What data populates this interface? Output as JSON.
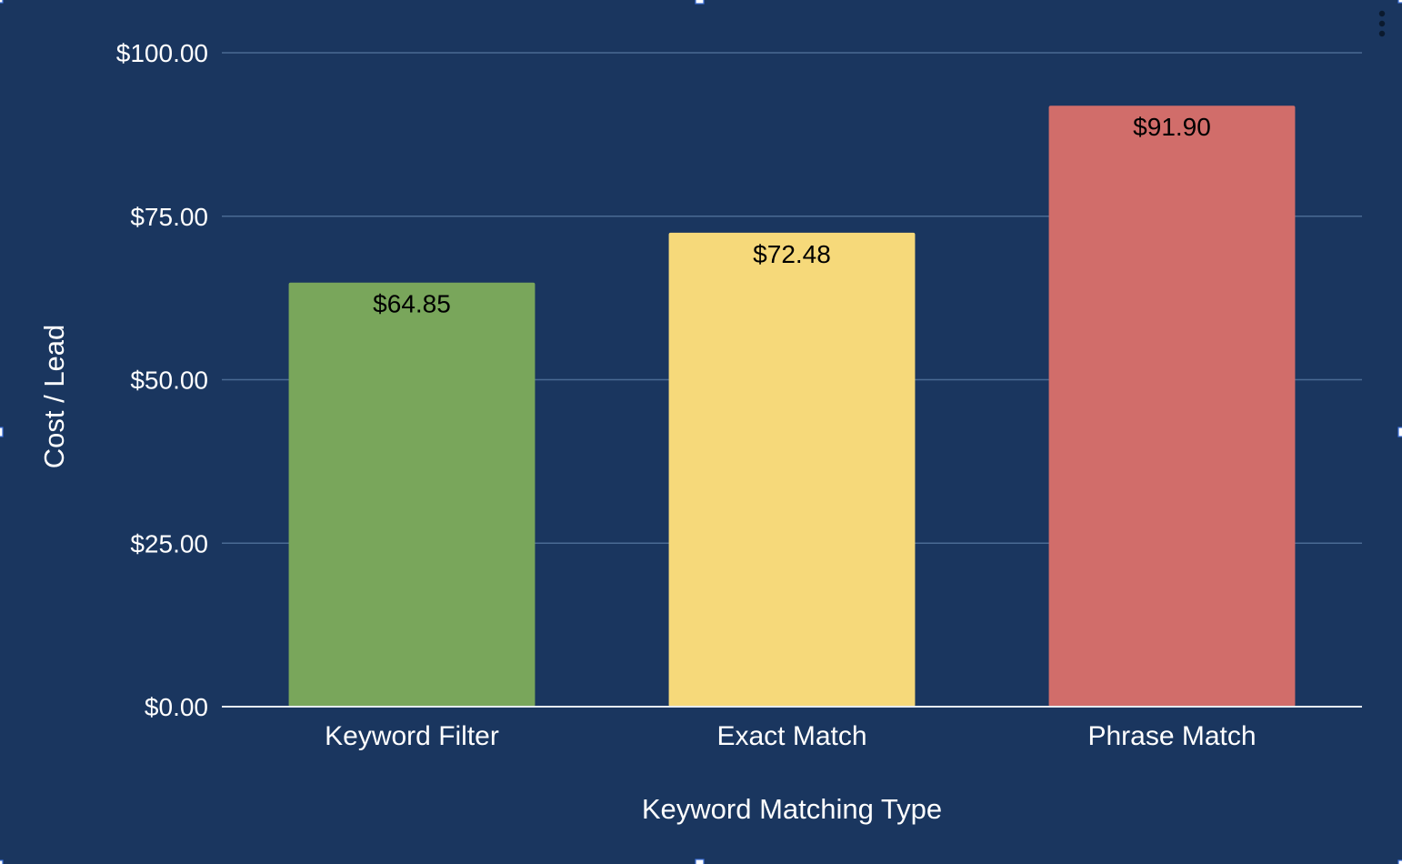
{
  "chart_data": {
    "type": "bar",
    "categories": [
      "Keyword Filter",
      "Exact Match",
      "Phrase Match"
    ],
    "values": [
      64.85,
      72.48,
      91.9
    ],
    "value_labels": [
      "$64.85",
      "$72.48",
      "$91.90"
    ],
    "bar_colors": [
      "#79a65b",
      "#f6d97a",
      "#d16d6a"
    ],
    "xlabel": "Keyword Matching Type",
    "ylabel": "Cost / Lead",
    "ylim": [
      0,
      100
    ],
    "y_ticks": [
      0,
      25,
      50,
      75,
      100
    ],
    "y_tick_labels": [
      "$0.00",
      "$25.00",
      "$50.00",
      "$75.00",
      "$100.00"
    ],
    "grid": true,
    "legend": "none"
  },
  "colors": {
    "background": "#1a365f",
    "gridline": "#4a6a93",
    "text": "#ffffff",
    "data_label_text": "#000000"
  },
  "toolbar": {
    "menu_icon": "more-vert-icon"
  }
}
